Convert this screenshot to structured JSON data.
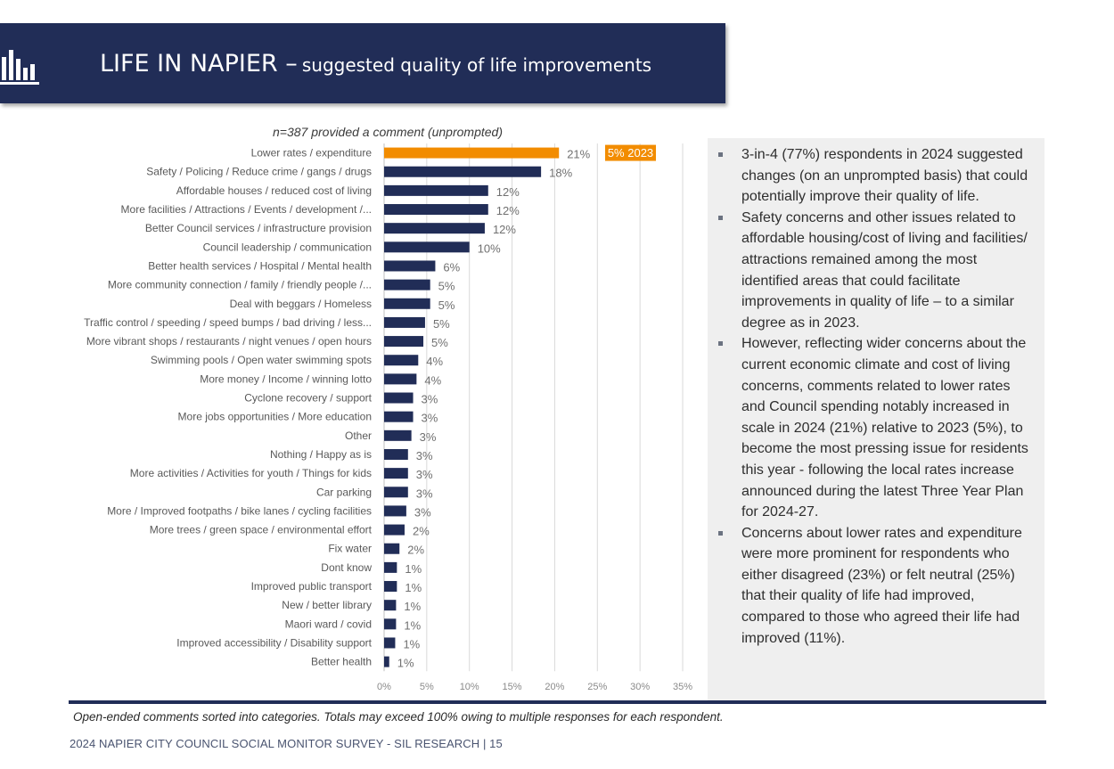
{
  "header": {
    "title_main": "LIFE IN NAPIER –",
    "title_sub": "suggested quality of life improvements",
    "icon": "bar-chart-icon"
  },
  "chart_note": "n=387 provided a comment (unprompted)",
  "chart_data": {
    "type": "bar",
    "orientation": "horizontal",
    "categories": [
      "Lower rates / expenditure",
      "Safety / Policing / Reduce crime / gangs / drugs",
      "Affordable houses / reduced cost of living",
      "More facilities / Attractions / Events / development /...",
      "Better Council services / infrastructure provision",
      "Council leadership / communication",
      "Better health services / Hospital / Mental health",
      "More community connection / family / friendly people /...",
      "Deal with beggars / Homeless",
      "Traffic control / speeding / speed bumps / bad driving / less...",
      "More vibrant shops / restaurants / night venues / open hours",
      "Swimming pools / Open water swimming spots",
      "More money / Income / winning lotto",
      "Cyclone recovery / support",
      "More jobs opportunities / More education",
      "Other",
      "Nothing / Happy as is",
      "More activities / Activities for youth / Things for kids",
      "Car parking",
      "More / Improved footpaths / bike lanes / cycling facilities",
      "More trees / green space / environmental effort",
      "Fix water",
      "Dont know",
      "Improved public transport",
      "New / better library",
      "Maori ward / covid",
      "Improved accessibility / Disability support",
      "Better health"
    ],
    "values": [
      20.5,
      18.4,
      12.2,
      12.2,
      11.8,
      10.0,
      6.0,
      5.4,
      5.4,
      4.8,
      4.6,
      4.0,
      3.8,
      3.4,
      3.4,
      3.2,
      2.8,
      2.8,
      2.8,
      2.6,
      2.4,
      1.8,
      1.5,
      1.5,
      1.4,
      1.4,
      1.3,
      0.6
    ],
    "labels": [
      "21%",
      "18%",
      "12%",
      "12%",
      "12%",
      "10%",
      "6%",
      "5%",
      "5%",
      "5%",
      "5%",
      "4%",
      "4%",
      "3%",
      "3%",
      "3%",
      "3%",
      "3%",
      "3%",
      "3%",
      "2%",
      "2%",
      "1%",
      "1%",
      "1%",
      "1%",
      "1%",
      "1%"
    ],
    "highlight_index": 0,
    "highlight_color": "#f28c00",
    "bar_color": "#212d57",
    "callout": "5% 2023",
    "xlim": [
      0,
      35
    ],
    "xticks": [
      "0%",
      "5%",
      "10%",
      "15%",
      "20%",
      "25%",
      "30%",
      "35%"
    ],
    "grid": true
  },
  "bullets": [
    "3-in-4 (77%) respondents in 2024 suggested changes (on an unprompted basis) that could potentially improve their quality of life.",
    "Safety concerns and other issues related to affordable housing/cost of living and facilities/ attractions remained among the most identified areas that could facilitate improvements in quality of life – to a similar degree as in 2023.",
    "However, reflecting wider concerns about the current economic climate and cost of living concerns, comments related to lower rates and Council spending notably increased in scale in 2024 (21%) relative to 2023 (5%), to become the most pressing issue for residents this year - following the local rates increase announced during the latest Three Year Plan for 2024-27.",
    "Concerns about lower rates and expenditure were more prominent for respondents who either disagreed (23%) or felt neutral (25%) that their quality of life had improved, compared to those who agreed their life had improved (11%)."
  ],
  "footnote": "Open-ended comments sorted into categories. Totals may exceed 100% owing to multiple responses for each respondent.",
  "footer": "2024 NAPIER CITY COUNCIL SOCIAL MONITOR SURVEY - SIL RESEARCH | 15"
}
